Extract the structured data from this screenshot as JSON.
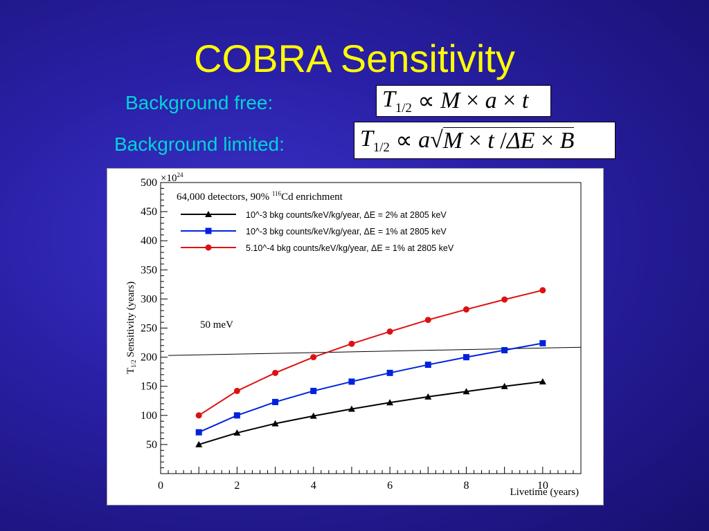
{
  "slide": {
    "title": "COBRA Sensitivity",
    "bg_free_label": "Background free:",
    "bg_limited_label": "Background limited:",
    "formula_free": "T1/2 ∝ M × a × t",
    "formula_limited": "T1/2 ∝ a√(M × t / ΔE × B)",
    "colors": {
      "title": "#ffff00",
      "label": "#00d6d6"
    }
  },
  "chart_data": {
    "type": "line",
    "title": "64,000 detectors, 90% 116Cd enrichment",
    "xlabel": "Livetime (years)",
    "ylabel": "T1/2 Sensitivity (years)",
    "y_multiplier": "×10^24",
    "xlim": [
      0,
      11
    ],
    "ylim": [
      0,
      500
    ],
    "xticks": [
      0,
      2,
      4,
      6,
      8,
      10
    ],
    "yticks": [
      50,
      100,
      150,
      200,
      250,
      300,
      350,
      400,
      450,
      500
    ],
    "legend_position": "top-left",
    "x": [
      1,
      2,
      3,
      4,
      5,
      6,
      7,
      8,
      9,
      10
    ],
    "series": [
      {
        "name": "10^-3 bkg counts/keV/kg/year, ΔE = 2% at 2805 keV",
        "marker": "triangle",
        "color": "#000000",
        "values": [
          50,
          70,
          86,
          99,
          111,
          122,
          132,
          141,
          150,
          158
        ]
      },
      {
        "name": "10^-3 bkg counts/keV/kg/year, ΔE = 1% at 2805 keV",
        "marker": "square",
        "color": "#0022dd",
        "values": [
          71,
          100,
          123,
          142,
          158,
          173,
          187,
          200,
          212,
          224
        ]
      },
      {
        "name": "5.10^-4 bkg counts/keV/kg/year, ΔE = 1% at 2805 keV",
        "marker": "circle",
        "color": "#dd1111",
        "values": [
          100,
          142,
          173,
          200,
          223,
          244,
          264,
          282,
          299,
          315
        ]
      }
    ],
    "reference_line": {
      "label": "50 meV",
      "x": [
        0.2,
        11
      ],
      "y": [
        203,
        217
      ],
      "color": "#000000"
    }
  }
}
